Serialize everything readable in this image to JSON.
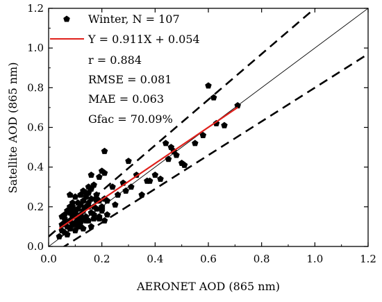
{
  "chart_data": {
    "type": "scatter",
    "xlabel": "AERONET AOD (865 nm)",
    "ylabel": "Satellite AOD (865 nm)",
    "xlim": [
      0.0,
      1.2
    ],
    "ylim": [
      0.0,
      1.2
    ],
    "xticks": [
      "0.0",
      "0.2",
      "0.4",
      "0.6",
      "0.8",
      "1.0",
      "1.2"
    ],
    "yticks": [
      "0.0",
      "0.2",
      "0.4",
      "0.6",
      "0.8",
      "1.0",
      "1.2"
    ],
    "grid": false,
    "legend_position": "top-left",
    "legend": {
      "series_label": "Winter, N = 107",
      "fit_label": "Y = 0.911X + 0.054",
      "stats": [
        "r = 0.884",
        "RMSE = 0.081",
        "MAE = 0.063",
        "Gfac = 70.09%"
      ]
    },
    "series": [
      {
        "name": "Winter, N = 107",
        "marker": "pentagon",
        "color": "#000000",
        "x": [
          0.04,
          0.05,
          0.05,
          0.06,
          0.06,
          0.06,
          0.07,
          0.07,
          0.07,
          0.08,
          0.08,
          0.08,
          0.08,
          0.09,
          0.09,
          0.09,
          0.1,
          0.1,
          0.1,
          0.1,
          0.11,
          0.11,
          0.11,
          0.12,
          0.12,
          0.12,
          0.13,
          0.13,
          0.13,
          0.13,
          0.14,
          0.14,
          0.14,
          0.15,
          0.15,
          0.15,
          0.16,
          0.16,
          0.16,
          0.17,
          0.17,
          0.18,
          0.18,
          0.19,
          0.19,
          0.2,
          0.2,
          0.21,
          0.21,
          0.22,
          0.24,
          0.26,
          0.28,
          0.3,
          0.31,
          0.33,
          0.35,
          0.38,
          0.4,
          0.42,
          0.44,
          0.46,
          0.48,
          0.5,
          0.55,
          0.58,
          0.6,
          0.62,
          0.63,
          0.66,
          0.71,
          0.05,
          0.06,
          0.07,
          0.08,
          0.09,
          0.1,
          0.11,
          0.12,
          0.13,
          0.14,
          0.15,
          0.16,
          0.17,
          0.18,
          0.19,
          0.2,
          0.21,
          0.09,
          0.11,
          0.13,
          0.15,
          0.17,
          0.19,
          0.21,
          0.12,
          0.14,
          0.16,
          0.18,
          0.2,
          0.22,
          0.25,
          0.29,
          0.37,
          0.45,
          0.47,
          0.51
        ],
        "y": [
          0.05,
          0.08,
          0.15,
          0.07,
          0.12,
          0.16,
          0.06,
          0.1,
          0.18,
          0.09,
          0.13,
          0.2,
          0.26,
          0.11,
          0.15,
          0.22,
          0.08,
          0.12,
          0.17,
          0.25,
          0.14,
          0.19,
          0.1,
          0.16,
          0.21,
          0.12,
          0.18,
          0.23,
          0.09,
          0.28,
          0.15,
          0.2,
          0.27,
          0.13,
          0.22,
          0.3,
          0.17,
          0.24,
          0.36,
          0.14,
          0.31,
          0.19,
          0.26,
          0.15,
          0.35,
          0.2,
          0.38,
          0.24,
          0.48,
          0.23,
          0.3,
          0.26,
          0.32,
          0.43,
          0.3,
          0.36,
          0.26,
          0.33,
          0.36,
          0.34,
          0.52,
          0.5,
          0.46,
          0.42,
          0.52,
          0.56,
          0.81,
          0.75,
          0.62,
          0.61,
          0.71,
          0.11,
          0.14,
          0.06,
          0.17,
          0.19,
          0.15,
          0.22,
          0.1,
          0.18,
          0.25,
          0.2,
          0.29,
          0.16,
          0.23,
          0.14,
          0.19,
          0.37,
          0.2,
          0.12,
          0.14,
          0.27,
          0.2,
          0.23,
          0.13,
          0.26,
          0.13,
          0.1,
          0.24,
          0.18,
          0.16,
          0.21,
          0.28,
          0.33,
          0.44,
          0.48,
          0.41
        ]
      }
    ],
    "lines": [
      {
        "name": "Y = 0.911X + 0.054",
        "kind": "fit",
        "color": "#e0201b",
        "slope": 0.911,
        "intercept": 0.054,
        "x_range": [
          0.04,
          0.71
        ]
      },
      {
        "kind": "1:1",
        "color": "#000000",
        "style": "solid-thin",
        "slope": 1.0,
        "intercept": 0.0
      },
      {
        "kind": "upper-envelope",
        "color": "#000000",
        "style": "dashed",
        "slope": 1.15,
        "intercept": 0.05
      },
      {
        "kind": "lower-envelope",
        "color": "#000000",
        "style": "dashed",
        "slope": 0.85,
        "intercept": -0.05
      }
    ]
  }
}
